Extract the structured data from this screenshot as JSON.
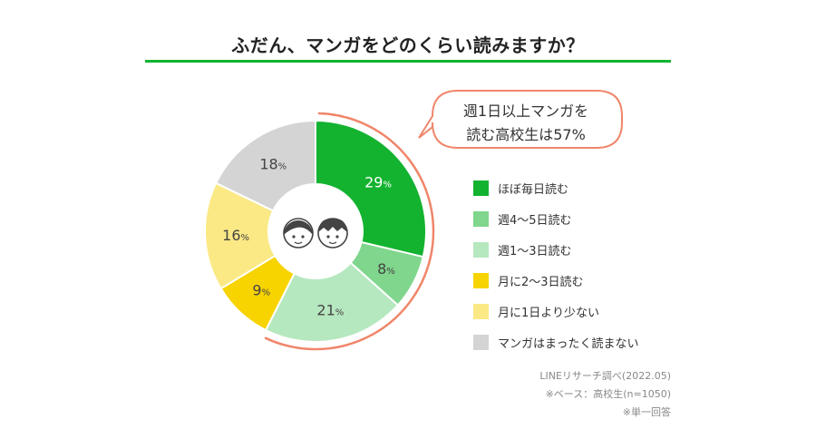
{
  "title": "ふだん、マンガをどのくらい読みますか？",
  "callout": {
    "line1": "週1日以上マンガを",
    "line2": "読む高校生は57%"
  },
  "source": {
    "line1": "LINEリサーチ調べ(2022.05)",
    "line2": "※ベース：高校生(n=1050)",
    "line3": "※単一回答"
  },
  "colors": {
    "accent_green": "#13b330",
    "callout_orange": "#f0866a"
  },
  "chart_data": {
    "type": "pie",
    "title": "ふだん、マンガをどのくらい読みますか？",
    "unit": "%",
    "slices": [
      {
        "label": "ほぼ毎日読む",
        "value": 29,
        "color": "#13b330"
      },
      {
        "label": "週4〜5日読む",
        "value": 8,
        "color": "#7fd68c"
      },
      {
        "label": "週1〜3日読む",
        "value": 21,
        "color": "#b6e8bf"
      },
      {
        "label": "月に2〜3日読む",
        "value": 9,
        "color": "#f7d300"
      },
      {
        "label": "月に1日より少ない",
        "value": 16,
        "color": "#fbe985"
      },
      {
        "label": "マンガはまったく読まない",
        "value": 18,
        "color": "#d4d4d4"
      }
    ],
    "legend_position": "right"
  }
}
